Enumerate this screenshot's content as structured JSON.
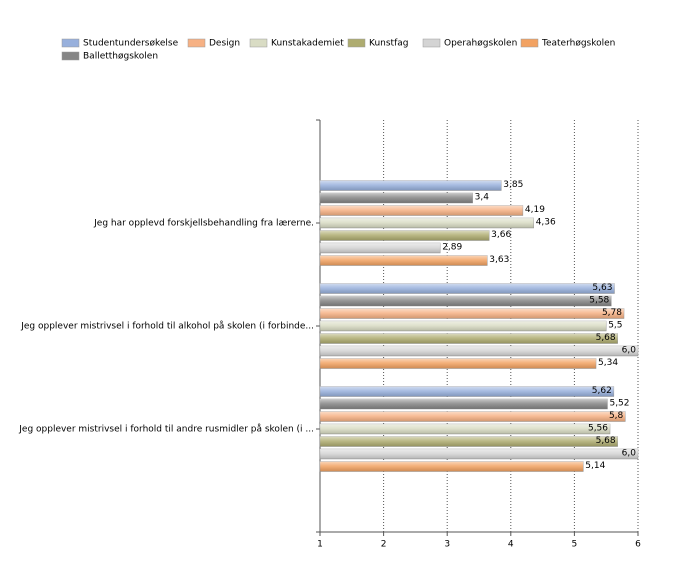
{
  "chart_data": {
    "type": "bar",
    "orientation": "horizontal",
    "categories": [
      "Jeg har opplevd forskjellsbehandling fra lærerne.",
      "Jeg opplever mistrivsel i forhold til alkohol på skolen (i forbinde...",
      "Jeg opplever mistrivsel i forhold til andre rusmidler på skolen (i ..."
    ],
    "series": [
      {
        "name": "Studentundersøkelse",
        "color": "#98b0dc",
        "values": [
          3.85,
          5.63,
          5.62
        ],
        "value_labels": [
          "3,85",
          "5,63",
          "5,62"
        ]
      },
      {
        "name": "Design",
        "color": "#f6b184",
        "values": [
          4.19,
          5.78,
          5.8
        ],
        "value_labels": [
          "4,19",
          "5,78",
          "5,8"
        ]
      },
      {
        "name": "Kunstakademiet",
        "color": "#d9dcc4",
        "values": [
          4.36,
          5.5,
          5.56
        ],
        "value_labels": [
          "4,36",
          "5,5",
          "5,56"
        ]
      },
      {
        "name": "Kunstfag",
        "color": "#aeac70",
        "values": [
          3.66,
          5.68,
          5.68
        ],
        "value_labels": [
          "3,66",
          "5,68",
          "5,68"
        ]
      },
      {
        "name": "Operahøgskolen",
        "color": "#d4d4d4",
        "values": [
          2.89,
          6.0,
          6.0
        ],
        "value_labels": [
          "2,89",
          "6,0",
          "6,0"
        ]
      },
      {
        "name": "Teaterhøgskolen",
        "color": "#f2a262",
        "values": [
          3.63,
          5.34,
          5.14
        ],
        "value_labels": [
          "3,63",
          "5,34",
          "5,14"
        ]
      },
      {
        "name": "Balletthøgskolen",
        "color": "#858585",
        "values": [
          3.4,
          5.58,
          5.52
        ],
        "value_labels": [
          "3,4",
          "5,58",
          "5,52"
        ]
      }
    ],
    "xlim": [
      1,
      6
    ],
    "xticks": [
      1,
      2,
      3,
      4,
      5,
      6
    ],
    "grid": true
  }
}
